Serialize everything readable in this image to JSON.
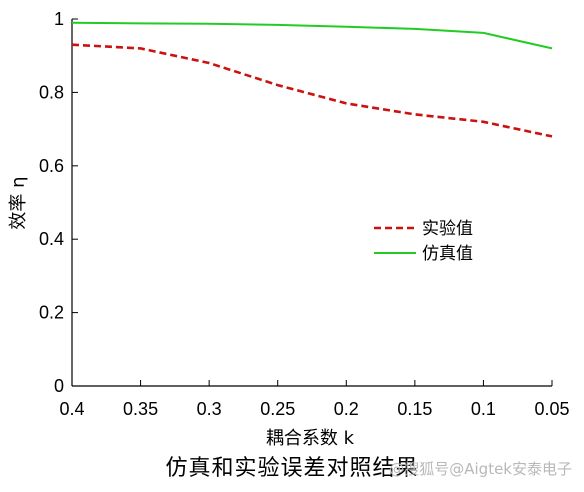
{
  "chart_data": {
    "type": "line",
    "xlabel": "耦合系数 k",
    "ylabel": "效率 η",
    "x_reversed": true,
    "xlim": [
      0.05,
      0.4
    ],
    "ylim": [
      0,
      1
    ],
    "x_ticks": [
      "0.4",
      "0.35",
      "0.3",
      "0.25",
      "0.2",
      "0.15",
      "0.1",
      "0.05"
    ],
    "y_ticks": [
      "0",
      "0.2",
      "0.4",
      "0.6",
      "0.8",
      "1"
    ],
    "legend_position": "center-right",
    "grid": false,
    "series": [
      {
        "name": "实验值",
        "color": "#cc1111",
        "style": "dashed",
        "x": [
          0.4,
          0.35,
          0.3,
          0.25,
          0.2,
          0.15,
          0.1,
          0.05
        ],
        "y": [
          0.93,
          0.92,
          0.88,
          0.82,
          0.77,
          0.74,
          0.72,
          0.68
        ]
      },
      {
        "name": "仿真值",
        "color": "#22cc22",
        "style": "solid",
        "x": [
          0.4,
          0.35,
          0.3,
          0.25,
          0.2,
          0.15,
          0.1,
          0.05
        ],
        "y": [
          0.99,
          0.988,
          0.987,
          0.984,
          0.979,
          0.973,
          0.962,
          0.92
        ]
      }
    ]
  },
  "caption": "仿真和实验误差对照结果",
  "watermark": "@搜狐号@Aigtek安泰电子"
}
